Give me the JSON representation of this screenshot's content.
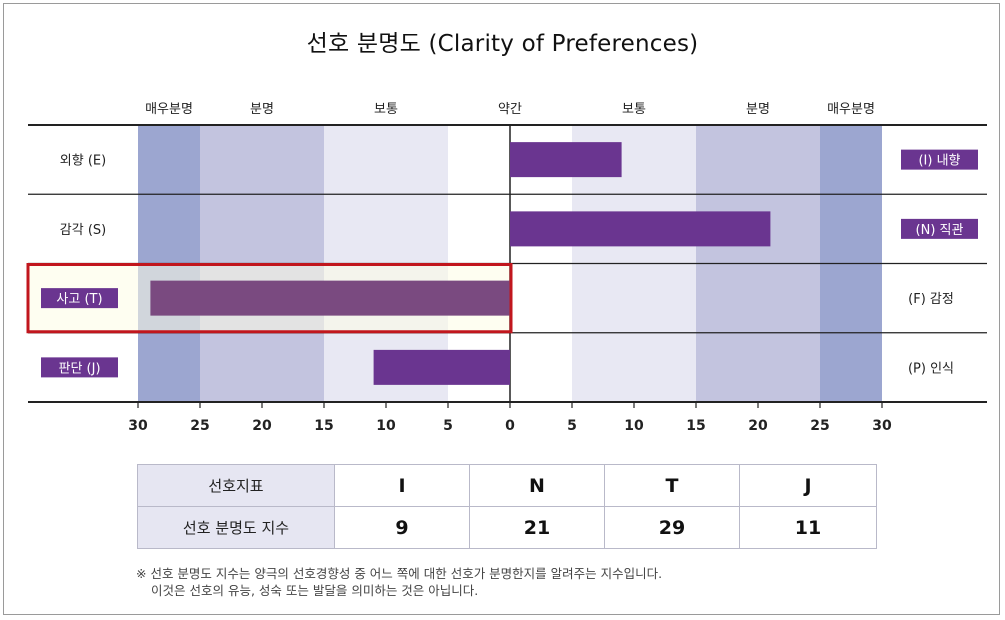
{
  "title": "선호 분명도 (Clarity of Preferences)",
  "chart_data": {
    "type": "bar",
    "orientation": "horizontal-diverging",
    "title": "선호 분명도 (Clarity of Preferences)",
    "xlim": [
      -30,
      30
    ],
    "ticks": [
      30,
      25,
      20,
      15,
      10,
      5,
      0,
      5,
      10,
      15,
      20,
      25,
      30
    ],
    "zone_labels": [
      "매우분명",
      "분명",
      "보통",
      "약간",
      "보통",
      "분명",
      "매우분명"
    ],
    "zones": [
      {
        "from": 25,
        "to": 30,
        "color": "#9ca6d0"
      },
      {
        "from": 15,
        "to": 25,
        "color": "#c3c4df"
      },
      {
        "from": 5,
        "to": 15,
        "color": "#e8e8f3"
      }
    ],
    "rows": [
      {
        "left_label": "외향 (E)",
        "right_label": "(I) 내향",
        "side": "right",
        "value": 9,
        "highlight": false
      },
      {
        "left_label": "감각 (S)",
        "right_label": "(N) 직관",
        "side": "right",
        "value": 21,
        "highlight": false
      },
      {
        "left_label": "사고 (T)",
        "right_label": "(F) 감정",
        "side": "left",
        "value": 29,
        "highlight": true
      },
      {
        "left_label": "판단 (J)",
        "right_label": "(P) 인식",
        "side": "left",
        "value": 11,
        "highlight": false
      }
    ],
    "bar_color": "#6a3590",
    "bar_color_highlight": "#7a4a80",
    "highlight_fill": "#fefee6",
    "highlight_border": "#c1161d"
  },
  "table": {
    "header_label": "선호지표",
    "row_label": "선호 분명도 지수",
    "letters": [
      "I",
      "N",
      "T",
      "J"
    ],
    "values": [
      "9",
      "21",
      "29",
      "11"
    ]
  },
  "note": {
    "line1": "※  선호 분명도 지수는 양극의 선호경향성 중 어느 쪽에 대한 선호가 분명한지를 알려주는 지수입니다.",
    "line2": "이것은 선호의 유능, 성숙 또는 발달을 의미하는 것은 아닙니다."
  }
}
